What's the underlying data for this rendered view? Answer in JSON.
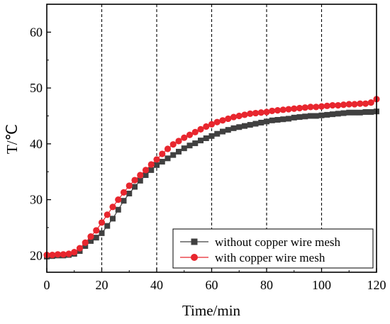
{
  "chart_data": {
    "type": "line",
    "xlabel": "Time/min",
    "ylabel": "T/℃",
    "xlim": [
      0,
      120
    ],
    "ylim": [
      17,
      65
    ],
    "x_ticks": [
      0,
      20,
      40,
      60,
      80,
      100,
      120
    ],
    "y_ticks": [
      20,
      30,
      40,
      50,
      60
    ],
    "x_tick_labels": [
      "0",
      "20",
      "40",
      "60",
      "80",
      "100",
      "120"
    ],
    "y_tick_labels": [
      "20",
      "30",
      "40",
      "50",
      "60"
    ],
    "vertical_dashed_lines_at": [
      20,
      40,
      60,
      80,
      100
    ],
    "grid": false,
    "legend_position": "bottom-right",
    "series": [
      {
        "name": "without copper wire mesh",
        "color": "#404040",
        "marker": "square",
        "x": [
          0,
          2,
          4,
          6,
          8,
          10,
          12,
          14,
          16,
          18,
          20,
          22,
          24,
          26,
          28,
          30,
          32,
          34,
          36,
          38,
          40,
          42,
          44,
          46,
          48,
          50,
          52,
          54,
          56,
          58,
          60,
          62,
          64,
          66,
          68,
          70,
          72,
          74,
          76,
          78,
          80,
          82,
          84,
          86,
          88,
          90,
          92,
          94,
          96,
          98,
          100,
          102,
          104,
          106,
          108,
          110,
          112,
          114,
          116,
          118,
          120
        ],
        "y": [
          19.8,
          19.9,
          20.0,
          20.0,
          20.1,
          20.3,
          20.8,
          21.7,
          22.6,
          23.2,
          24.0,
          25.3,
          26.6,
          28.2,
          29.8,
          31.1,
          32.3,
          33.4,
          34.4,
          35.3,
          36.2,
          36.8,
          37.4,
          38.0,
          38.6,
          39.2,
          39.7,
          40.1,
          40.6,
          41.0,
          41.4,
          41.8,
          42.2,
          42.5,
          42.8,
          43.0,
          43.2,
          43.4,
          43.6,
          43.8,
          44.0,
          44.2,
          44.3,
          44.4,
          44.5,
          44.7,
          44.8,
          44.9,
          45.0,
          45.0,
          45.1,
          45.2,
          45.3,
          45.4,
          45.5,
          45.6,
          45.6,
          45.6,
          45.7,
          45.7,
          45.8
        ]
      },
      {
        "name": "with copper wire mesh",
        "color": "#e8262e",
        "marker": "circle",
        "x": [
          0,
          2,
          4,
          6,
          8,
          10,
          12,
          14,
          16,
          18,
          20,
          22,
          24,
          26,
          28,
          30,
          32,
          34,
          36,
          38,
          40,
          42,
          44,
          46,
          48,
          50,
          52,
          54,
          56,
          58,
          60,
          62,
          64,
          66,
          68,
          70,
          72,
          74,
          76,
          78,
          80,
          82,
          84,
          86,
          88,
          90,
          92,
          94,
          96,
          98,
          100,
          102,
          104,
          106,
          108,
          110,
          112,
          114,
          116,
          118,
          120
        ],
        "y": [
          20.1,
          20.1,
          20.2,
          20.2,
          20.3,
          20.6,
          21.3,
          22.3,
          23.4,
          24.5,
          25.9,
          27.3,
          28.7,
          30.0,
          31.3,
          32.5,
          33.5,
          34.4,
          35.3,
          36.3,
          37.2,
          38.2,
          39.1,
          39.9,
          40.5,
          41.1,
          41.6,
          42.1,
          42.6,
          43.1,
          43.5,
          43.9,
          44.2,
          44.5,
          44.8,
          45.0,
          45.2,
          45.4,
          45.5,
          45.6,
          45.7,
          45.9,
          46.0,
          46.1,
          46.2,
          46.3,
          46.4,
          46.5,
          46.6,
          46.6,
          46.7,
          46.8,
          46.9,
          46.9,
          47.0,
          47.1,
          47.1,
          47.2,
          47.2,
          47.4,
          48.0
        ]
      }
    ]
  }
}
